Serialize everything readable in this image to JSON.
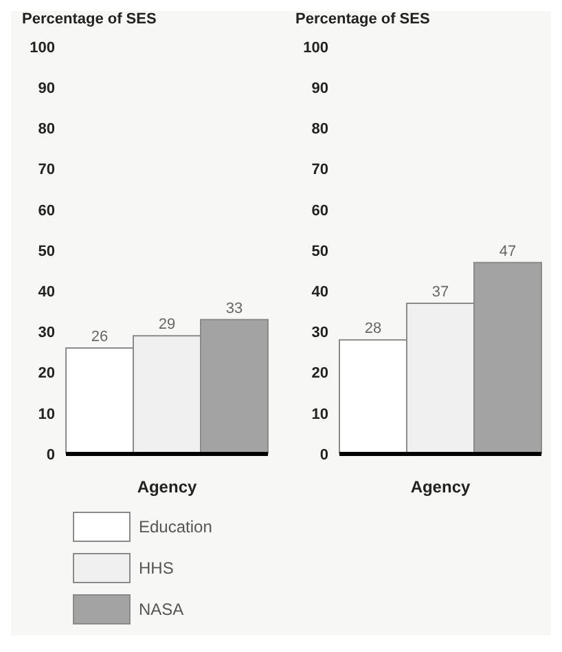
{
  "chart_data": [
    {
      "type": "bar",
      "ylabel": "Percentage of SES",
      "xlabel": "Agency",
      "categories": [
        null
      ],
      "ylim": [
        0,
        100
      ],
      "yticks": [
        0,
        10,
        20,
        30,
        40,
        50,
        60,
        70,
        80,
        90,
        100
      ],
      "data_labels": true,
      "legend": "bottom",
      "grid": false,
      "series": [
        {
          "name": "Education",
          "color": "#ffffff",
          "values": [
            26
          ]
        },
        {
          "name": "HHS",
          "color": "#f0f0f0",
          "values": [
            29
          ]
        },
        {
          "name": "NASA",
          "color": "#a3a3a3",
          "values": [
            33
          ]
        }
      ]
    },
    {
      "type": "bar",
      "ylabel": "Percentage of SES",
      "xlabel": "Agency",
      "categories": [
        null
      ],
      "ylim": [
        0,
        100
      ],
      "yticks": [
        0,
        10,
        20,
        30,
        40,
        50,
        60,
        70,
        80,
        90,
        100
      ],
      "data_labels": true,
      "grid": false,
      "series": [
        {
          "color": "#ffffff",
          "values": [
            28
          ]
        },
        {
          "color": "#f0f0f0",
          "values": [
            37
          ]
        },
        {
          "color": "#a3a3a3",
          "values": [
            47
          ]
        }
      ]
    }
  ]
}
